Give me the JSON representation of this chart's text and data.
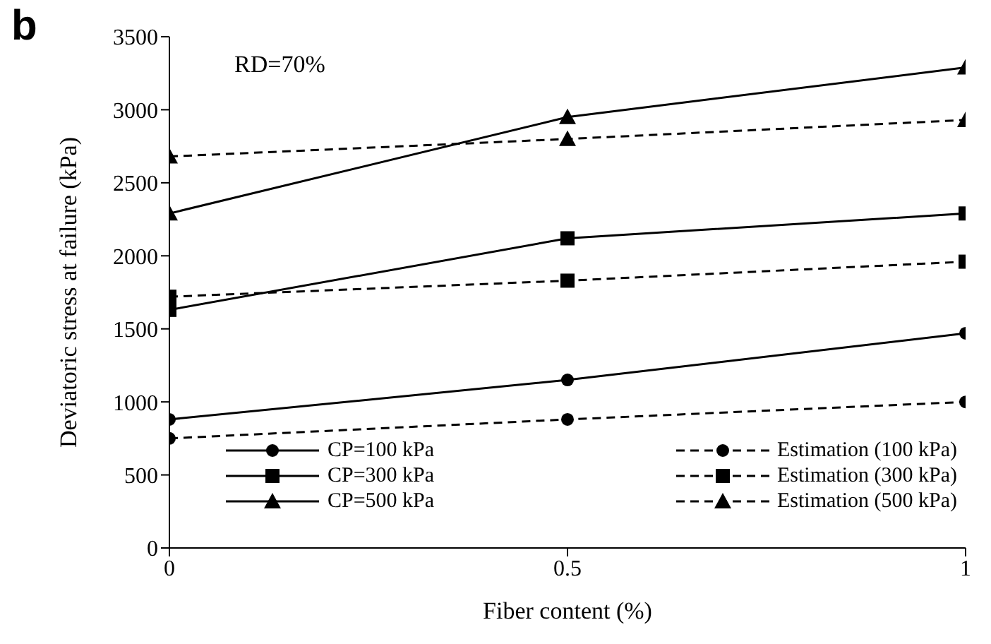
{
  "chart_data": {
    "type": "line",
    "xlabel": "Fiber content (%)",
    "ylabel": "Deviatoric stress at failure (kPa)",
    "annotations": [
      "b",
      "RD=70%"
    ],
    "x": [
      0,
      0.5,
      1
    ],
    "xlim": [
      0,
      1
    ],
    "xticks": [
      0,
      0.5,
      1
    ],
    "ylim": [
      0,
      3500
    ],
    "yticks": [
      0,
      500,
      1000,
      1500,
      2000,
      2500,
      3000,
      3500
    ],
    "grid": false,
    "legend": "bottom",
    "series": [
      {
        "name": "CP=100 kPa",
        "color": "#000000",
        "marker": "circle",
        "line_style": "solid",
        "values": [
          880,
          1150,
          1470
        ]
      },
      {
        "name": "CP=300 kPa",
        "color": "#000000",
        "marker": "square",
        "line_style": "solid",
        "values": [
          1630,
          2120,
          2290
        ]
      },
      {
        "name": "CP=500 kPa",
        "color": "#000000",
        "marker": "triangle",
        "line_style": "solid",
        "values": [
          2290,
          2950,
          3290
        ]
      },
      {
        "name": "Estimation (100 kPa)",
        "color": "#000000",
        "marker": "circle",
        "line_style": "dashed",
        "values": [
          750,
          880,
          1000
        ]
      },
      {
        "name": "Estimation (300 kPa)",
        "color": "#000000",
        "marker": "square",
        "line_style": "dashed",
        "values": [
          1720,
          1830,
          1960
        ]
      },
      {
        "name": "Estimation (500 kPa)",
        "color": "#000000",
        "marker": "triangle",
        "line_style": "dashed",
        "values": [
          2680,
          2800,
          2930
        ]
      }
    ]
  }
}
